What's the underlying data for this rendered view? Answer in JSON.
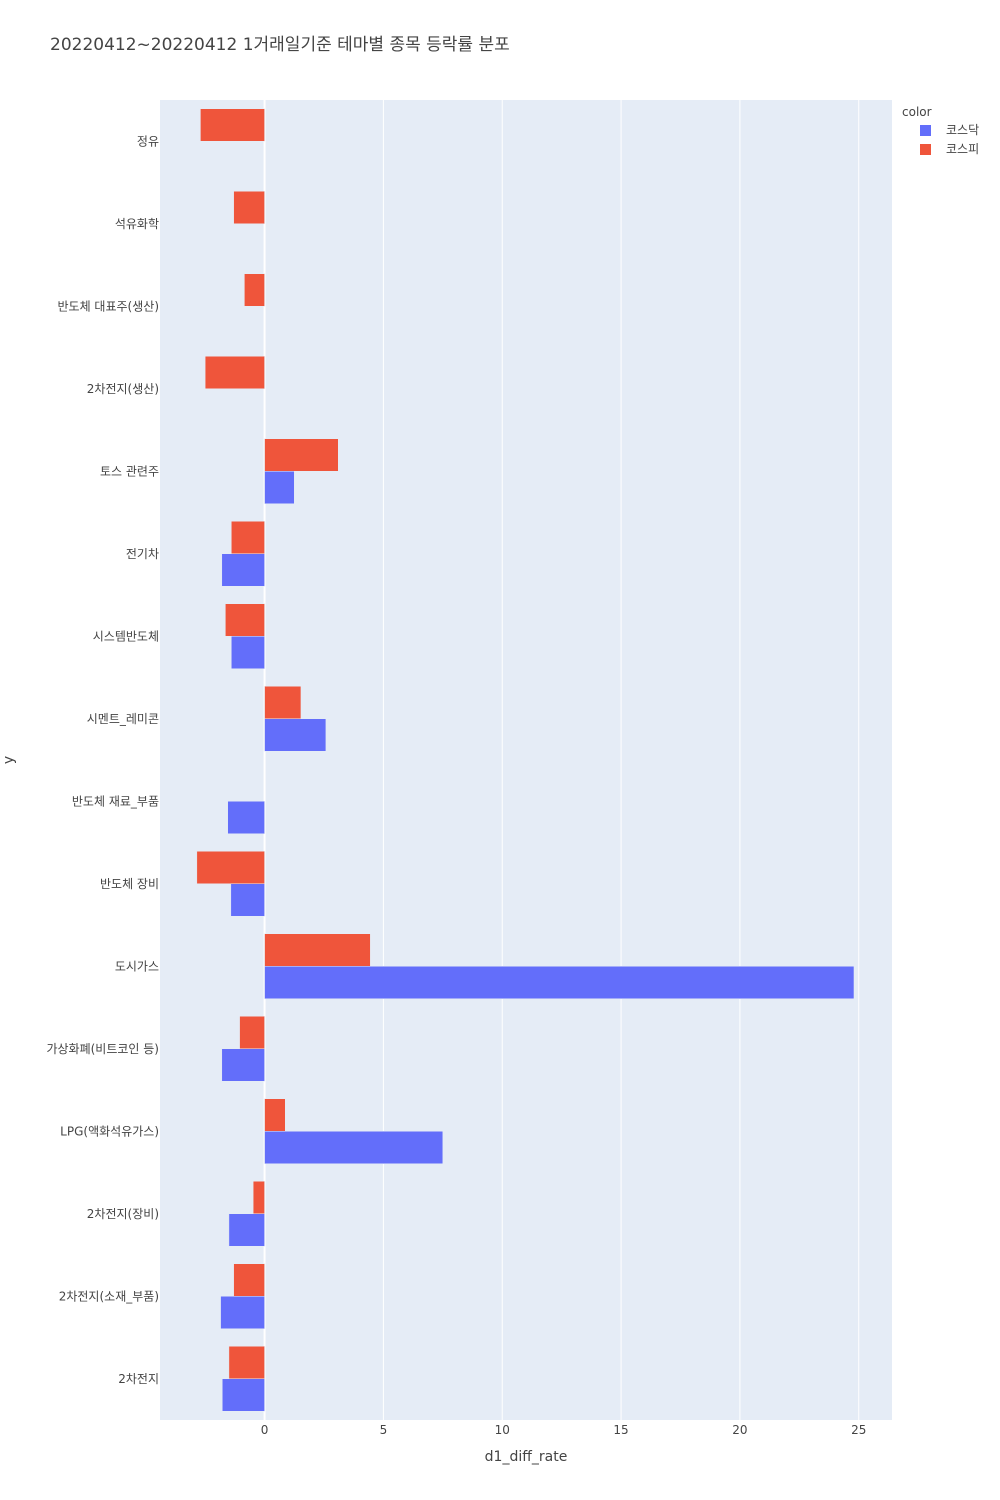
{
  "chart_data": {
    "type": "bar",
    "orientation": "horizontal",
    "barmode": "group",
    "title": "20220412~20220412 1거래일기준 테마별 종목 등락률 분포",
    "xlabel": "d1_diff_rate",
    "ylabel": "y",
    "xlim": [
      -4.4,
      26.4
    ],
    "xticks": [
      0,
      5,
      10,
      15,
      20,
      25
    ],
    "grid": true,
    "legend": {
      "title": "color",
      "position": "top-right",
      "entries": [
        "코스닥",
        "코스피"
      ]
    },
    "categories": [
      "정유",
      "석유화학",
      "반도체 대표주(생산)",
      "2차전지(생산)",
      "토스 관련주",
      "전기차",
      "시스템반도체",
      "시멘트_레미콘",
      "반도체 재료_부품",
      "반도체 장비",
      "도시가스",
      "가상화폐(비트코인 등)",
      "LPG(액화석유가스)",
      "2차전지(장비)",
      "2차전지(소재_부품)",
      "2차전지"
    ],
    "series": [
      {
        "name": "코스닥",
        "color": "#636efa",
        "values": [
          null,
          null,
          null,
          null,
          1.25,
          -1.8,
          -1.4,
          2.58,
          -1.55,
          -1.42,
          24.8,
          -1.8,
          7.5,
          -1.5,
          -1.85,
          -1.78
        ]
      },
      {
        "name": "코스피",
        "color": "#ef553b",
        "values": [
          -2.7,
          -1.3,
          -0.85,
          -2.5,
          3.1,
          -1.4,
          -1.65,
          1.53,
          null,
          -2.85,
          4.45,
          -1.05,
          0.87,
          -0.48,
          -1.3,
          -1.5
        ]
      }
    ]
  }
}
